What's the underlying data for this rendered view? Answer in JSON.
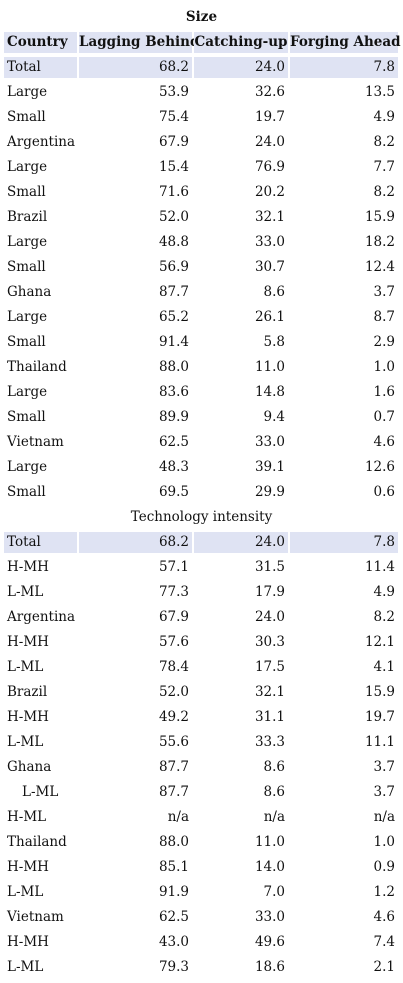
{
  "columns": [
    "Country",
    "Lagging Behind",
    "Catching-up",
    "Forging Ahead"
  ],
  "sections": [
    {
      "title": "Size",
      "rows": [
        {
          "label": "Total",
          "v": [
            "68.2",
            "24.0",
            "7.8"
          ],
          "total": true
        },
        {
          "label": "Large",
          "v": [
            "53.9",
            "32.6",
            "13.5"
          ]
        },
        {
          "label": "Small",
          "v": [
            "75.4",
            "19.7",
            "4.9"
          ]
        },
        {
          "label": "Argentina",
          "v": [
            "67.9",
            "24.0",
            "8.2"
          ]
        },
        {
          "label": "Large",
          "v": [
            "15.4",
            "76.9",
            "7.7"
          ]
        },
        {
          "label": "Small",
          "v": [
            "71.6",
            "20.2",
            "8.2"
          ]
        },
        {
          "label": "Brazil",
          "v": [
            "52.0",
            "32.1",
            "15.9"
          ]
        },
        {
          "label": "Large",
          "v": [
            "48.8",
            "33.0",
            "18.2"
          ]
        },
        {
          "label": "Small",
          "v": [
            "56.9",
            "30.7",
            "12.4"
          ]
        },
        {
          "label": "Ghana",
          "v": [
            "87.7",
            "8.6",
            "3.7"
          ]
        },
        {
          "label": "Large",
          "v": [
            "65.2",
            "26.1",
            "8.7"
          ]
        },
        {
          "label": "Small",
          "v": [
            "91.4",
            "5.8",
            "2.9"
          ]
        },
        {
          "label": "Thailand",
          "v": [
            "88.0",
            "11.0",
            "1.0"
          ]
        },
        {
          "label": "Large",
          "v": [
            "83.6",
            "14.8",
            "1.6"
          ]
        },
        {
          "label": "Small",
          "v": [
            "89.9",
            "9.4",
            "0.7"
          ]
        },
        {
          "label": "Vietnam",
          "v": [
            "62.5",
            "33.0",
            "4.6"
          ]
        },
        {
          "label": "Large",
          "v": [
            "48.3",
            "39.1",
            "12.6"
          ]
        },
        {
          "label": "Small",
          "v": [
            "69.5",
            "29.9",
            "0.6"
          ]
        }
      ]
    },
    {
      "title": "Technology intensity",
      "rows": [
        {
          "label": "Total",
          "v": [
            "68.2",
            "24.0",
            "7.8"
          ],
          "total": true
        },
        {
          "label": "H-MH",
          "v": [
            "57.1",
            "31.5",
            "11.4"
          ]
        },
        {
          "label": "L-ML",
          "v": [
            "77.3",
            "17.9",
            "4.9"
          ]
        },
        {
          "label": "Argentina",
          "v": [
            "67.9",
            "24.0",
            "8.2"
          ]
        },
        {
          "label": "H-MH",
          "v": [
            "57.6",
            "30.3",
            "12.1"
          ]
        },
        {
          "label": "L-ML",
          "v": [
            "78.4",
            "17.5",
            "4.1"
          ]
        },
        {
          "label": "Brazil",
          "v": [
            "52.0",
            "32.1",
            "15.9"
          ]
        },
        {
          "label": "H-MH",
          "v": [
            "49.2",
            "31.1",
            "19.7"
          ]
        },
        {
          "label": "L-ML",
          "v": [
            "55.6",
            "33.3",
            "11.1"
          ]
        },
        {
          "label": "Ghana",
          "v": [
            "87.7",
            "8.6",
            "3.7"
          ]
        },
        {
          "label": "L-ML",
          "v": [
            "87.7",
            "8.6",
            "3.7"
          ],
          "indent": true
        },
        {
          "label": "H-ML",
          "v": [
            "n/a",
            "n/a",
            "n/a"
          ]
        },
        {
          "label": "Thailand",
          "v": [
            "88.0",
            "11.0",
            "1.0"
          ]
        },
        {
          "label": "H-MH",
          "v": [
            "85.1",
            "14.0",
            "0.9"
          ]
        },
        {
          "label": "L-ML",
          "v": [
            "91.9",
            "7.0",
            "1.2"
          ]
        },
        {
          "label": "Vietnam",
          "v": [
            "62.5",
            "33.0",
            "4.6"
          ]
        },
        {
          "label": "H-MH",
          "v": [
            "43.0",
            "49.6",
            "7.4"
          ]
        },
        {
          "label": "L-ML",
          "v": [
            "79.3",
            "18.6",
            "2.1"
          ]
        }
      ]
    }
  ]
}
